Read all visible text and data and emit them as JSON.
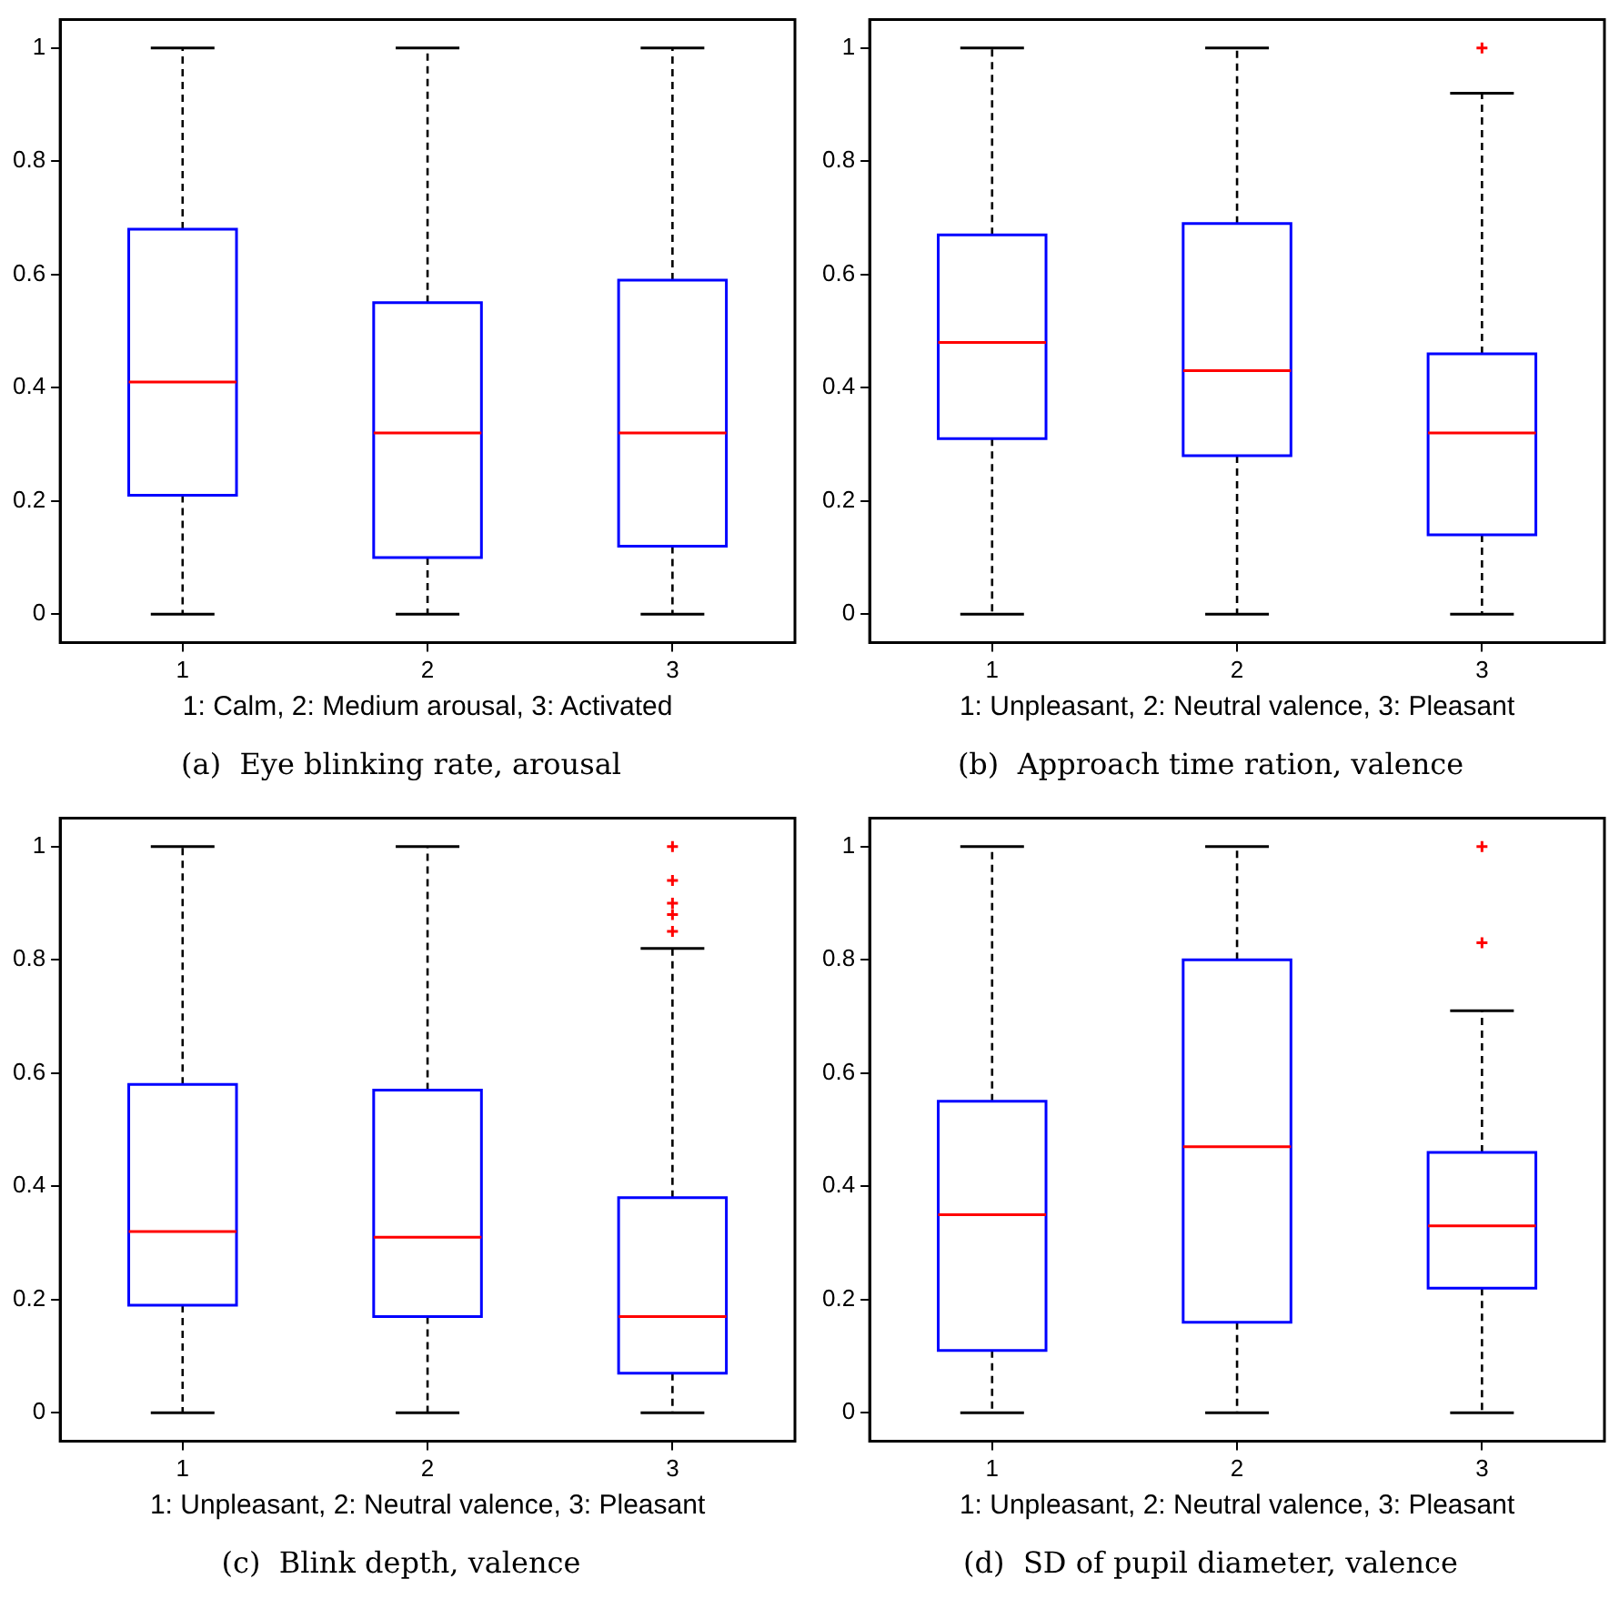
{
  "chart_data": [
    {
      "type": "box",
      "title": "(a)  Eye blinking rate, arousal",
      "xlabel": "1: Calm, 2: Medium arousal, 3: Activated",
      "categories": [
        "1",
        "2",
        "3"
      ],
      "color": "#0000ff",
      "ylim": [
        -0.05,
        1.05
      ],
      "yticks": [
        0,
        0.2,
        0.4,
        0.6,
        0.8,
        1
      ],
      "boxes": [
        {
          "low": 0,
          "q1": 0.21,
          "median": 0.41,
          "q3": 0.68,
          "high": 1
        },
        {
          "low": 0,
          "q1": 0.1,
          "median": 0.32,
          "q3": 0.55,
          "high": 1
        },
        {
          "low": 0,
          "q1": 0.12,
          "median": 0.32,
          "q3": 0.59,
          "high": 1
        }
      ]
    },
    {
      "type": "box",
      "title": "(b)  Approach time ration, valence",
      "xlabel": "1: Unpleasant, 2: Neutral valence, 3: Pleasant",
      "categories": [
        "1",
        "2",
        "3"
      ],
      "color": "#0000ff",
      "ylim": [
        -0.05,
        1.05
      ],
      "yticks": [
        0,
        0.2,
        0.4,
        0.6,
        0.8,
        1
      ],
      "boxes": [
        {
          "low": 0,
          "q1": 0.31,
          "median": 0.48,
          "q3": 0.67,
          "high": 1
        },
        {
          "low": 0,
          "q1": 0.28,
          "median": 0.43,
          "q3": 0.69,
          "high": 1
        },
        {
          "low": 0,
          "q1": 0.14,
          "median": 0.32,
          "q3": 0.46,
          "high": 0.92,
          "outliers": [
            1
          ]
        }
      ]
    },
    {
      "type": "box",
      "title": "(c)  Blink depth, valence",
      "xlabel": "1: Unpleasant, 2: Neutral valence, 3: Pleasant",
      "categories": [
        "1",
        "2",
        "3"
      ],
      "color": "#0000ff",
      "ylim": [
        -0.05,
        1.05
      ],
      "yticks": [
        0,
        0.2,
        0.4,
        0.6,
        0.8,
        1
      ],
      "boxes": [
        {
          "low": 0,
          "q1": 0.19,
          "median": 0.32,
          "q3": 0.58,
          "high": 1
        },
        {
          "low": 0,
          "q1": 0.17,
          "median": 0.31,
          "q3": 0.57,
          "high": 1
        },
        {
          "low": 0,
          "q1": 0.07,
          "median": 0.17,
          "q3": 0.38,
          "high": 0.82,
          "outliers": [
            1,
            0.94,
            0.9,
            0.88,
            0.85
          ]
        }
      ]
    },
    {
      "type": "box",
      "title": "(d)  SD of pupil diameter, valence",
      "xlabel": "1: Unpleasant, 2: Neutral valence, 3: Pleasant",
      "categories": [
        "1",
        "2",
        "3"
      ],
      "color": "#0000ff",
      "ylim": [
        -0.05,
        1.05
      ],
      "yticks": [
        0,
        0.2,
        0.4,
        0.6,
        0.8,
        1
      ],
      "boxes": [
        {
          "low": 0,
          "q1": 0.11,
          "median": 0.35,
          "q3": 0.55,
          "high": 1
        },
        {
          "low": 0,
          "q1": 0.16,
          "median": 0.47,
          "q3": 0.8,
          "high": 1
        },
        {
          "low": 0,
          "q1": 0.22,
          "median": 0.33,
          "q3": 0.46,
          "high": 0.71,
          "outliers": [
            1,
            0.83
          ]
        }
      ]
    }
  ]
}
